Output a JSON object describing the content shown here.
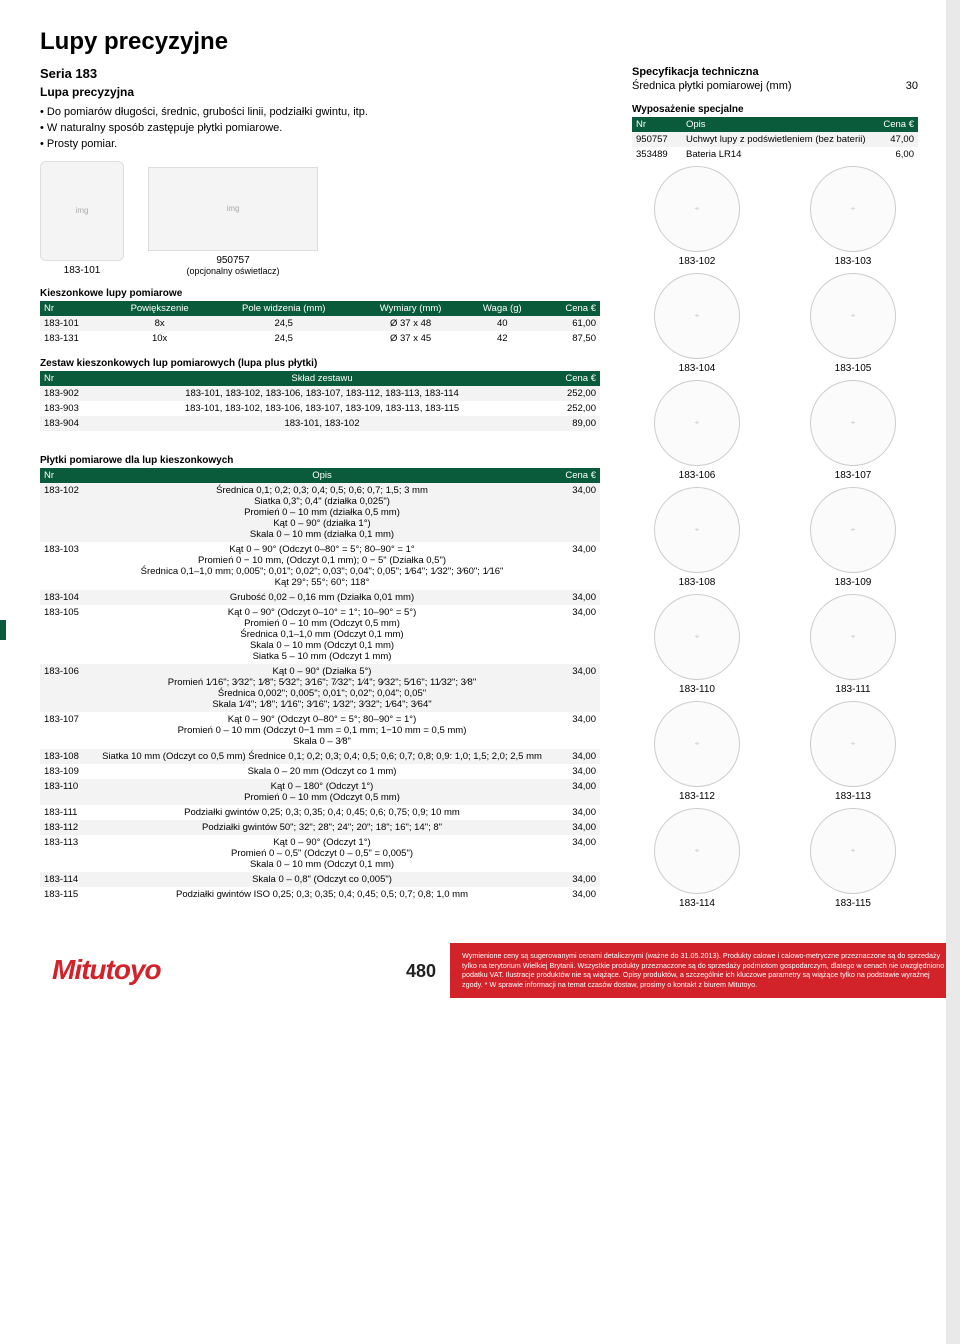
{
  "page_title": "Lupy precyzyjne",
  "series": "Seria 183",
  "subtitle": "Lupa precyzyjna",
  "bullets": [
    "Do pomiarów długości, średnic, grubości linii, podziałki gwintu, itp.",
    "W naturalny sposób zastępuje płytki pomiarowe.",
    "Prosty pomiar."
  ],
  "spec": {
    "title": "Specyfikacja techniczna",
    "diam_label": "Średnica płytki pomiarowej (mm)",
    "diam_value": "30"
  },
  "equip": {
    "title": "Wyposażenie specjalne",
    "cols": {
      "nr": "Nr",
      "opis": "Opis",
      "cena": "Cena €"
    },
    "rows": [
      {
        "nr": "950757",
        "opis": "Uchwyt lupy z podświetleniem (bez baterii)",
        "cena": "47,00"
      },
      {
        "nr": "353489",
        "opis": "Bateria LR14",
        "cena": "6,00"
      }
    ]
  },
  "img_labels": {
    "left": "183-101",
    "right_top": "950757",
    "right_bot": "(opcjonalny oświetlacz)"
  },
  "t1": {
    "title": "Kieszonkowe lupy pomiarowe",
    "cols": {
      "nr": "Nr",
      "pow": "Powiększenie",
      "pole": "Pole widzenia (mm)",
      "wym": "Wymiary (mm)",
      "waga": "Waga (g)",
      "cena": "Cena €"
    },
    "rows": [
      {
        "nr": "183-101",
        "pow": "8x",
        "pole": "24,5",
        "wym": "Ø 37 x 48",
        "waga": "40",
        "cena": "61,00"
      },
      {
        "nr": "183-131",
        "pow": "10x",
        "pole": "24,5",
        "wym": "Ø 37 x 45",
        "waga": "42",
        "cena": "87,50"
      }
    ]
  },
  "t2": {
    "title": "Zestaw kieszonkowych lup pomiarowych (lupa plus płytki)",
    "cols": {
      "nr": "Nr",
      "sklad": "Skład zestawu",
      "cena": "Cena €"
    },
    "rows": [
      {
        "nr": "183-902",
        "sklad": "183-101, 183-102, 183-106, 183-107, 183-112, 183-113, 183-114",
        "cena": "252,00"
      },
      {
        "nr": "183-903",
        "sklad": "183-101, 183-102, 183-106, 183-107, 183-109, 183-113, 183-115",
        "cena": "252,00"
      },
      {
        "nr": "183-904",
        "sklad": "183-101, 183-102",
        "cena": "89,00"
      }
    ]
  },
  "t3": {
    "title": "Płytki pomiarowe dla lup kieszonkowych",
    "cols": {
      "nr": "Nr",
      "opis": "Opis",
      "cena": "Cena €"
    },
    "rows": [
      {
        "nr": "183-102",
        "opis": "Średnica 0,1; 0,2; 0,3; 0,4; 0,5; 0,6; 0,7; 1,5; 3 mm\nSiatka 0,3\"; 0,4\" (działka 0,025\")\nPromień 0 – 10 mm (działka 0,5 mm)\nKąt 0 – 90° (działka 1°)\nSkala 0 – 10 mm (działka 0,1 mm)",
        "cena": "34,00"
      },
      {
        "nr": "183-103",
        "opis": "Kąt 0 – 90° (Odczyt 0–80° = 5°; 80–90° = 1°\nPromień 0 − 10 mm, (Odczyt 0,1 mm); 0 − 5\" (Działka 0,5\")\nŚrednica 0,1–1,0 mm; 0,005\"; 0,01\"; 0,02\"; 0,03\"; 0,04\"; 0,05\"; 1⁄64\"; 1⁄32\"; 3⁄60\"; 1⁄16\"\nKąt 29°; 55°; 60°; 118°",
        "cena": "34,00"
      },
      {
        "nr": "183-104",
        "opis": "Grubość 0,02 – 0,16 mm (Działka 0,01 mm)",
        "cena": "34,00"
      },
      {
        "nr": "183-105",
        "opis": "Kąt 0 – 90° (Odczyt 0–10° = 1°; 10–90° = 5°)\nPromień 0 – 10 mm (Odczyt 0,5 mm)\nŚrednica 0,1–1,0 mm (Odczyt 0,1 mm)\nSkala 0 – 10 mm (Odczyt 0,1 mm)\nSiatka 5 – 10 mm (Odczyt 1 mm)",
        "cena": "34,00"
      },
      {
        "nr": "183-106",
        "opis": "Kąt 0 – 90° (Działka 5°)\nPromień 1⁄16\"; 3⁄32\"; 1⁄8\"; 5⁄32\"; 3⁄16\"; 7⁄32\"; 1⁄4\"; 9⁄32\"; 5⁄16\"; 11⁄32\"; 3⁄8\"\nŚrednica 0,002\"; 0,005\"; 0,01\"; 0,02\"; 0,04\"; 0,05\"\nSkala 1⁄4\"; 1⁄8\"; 1⁄16\"; 3⁄16\"; 1⁄32\"; 3⁄32\"; 1⁄64\"; 3⁄64\"",
        "cena": "34,00"
      },
      {
        "nr": "183-107",
        "opis": "Kąt 0 – 90° (Odczyt 0–80° = 5°; 80–90° = 1°)\nPromień 0 – 10 mm (Odczyt 0−1 mm = 0,1 mm; 1−10 mm = 0,5 mm)\nSkala 0 – 3⁄8\"",
        "cena": "34,00"
      },
      {
        "nr": "183-108",
        "opis": "Siatka 10 mm (Odczyt co 0,5 mm) Średnice 0,1; 0,2; 0,3; 0,4; 0,5; 0,6; 0,7; 0,8; 0,9: 1,0; 1,5; 2,0; 2,5 mm",
        "cena": "34,00"
      },
      {
        "nr": "183-109",
        "opis": "Skala 0 – 20 mm (Odczyt co 1 mm)",
        "cena": "34,00"
      },
      {
        "nr": "183-110",
        "opis": "Kąt 0 – 180° (Odczyt 1°)\nPromień 0 – 10 mm (Odczyt 0,5 mm)",
        "cena": "34,00"
      },
      {
        "nr": "183-111",
        "opis": "Podziałki gwintów 0,25; 0,3; 0,35; 0,4; 0,45; 0,6; 0,75; 0,9; 10 mm",
        "cena": "34,00"
      },
      {
        "nr": "183-112",
        "opis": "Podziałki gwintów 50\"; 32\"; 28\"; 24\"; 20\"; 18\"; 16\"; 14\"; 8\"",
        "cena": "34,00"
      },
      {
        "nr": "183-113",
        "opis": "Kąt 0 – 90° (Odczyt 1°)\nPromień 0 – 0,5\" (Odczyt 0 – 0,5\" = 0,005\")\nSkala 0 – 10 mm (Odczyt 0,1 mm)",
        "cena": "34,00"
      },
      {
        "nr": "183-114",
        "opis": "Skala 0 – 0,8\" (Odczyt co 0,005\")",
        "cena": "34,00"
      },
      {
        "nr": "183-115",
        "opis": "Podziałki gwintów ISO 0,25; 0,3; 0,35; 0,4; 0,45; 0,5; 0,7; 0,8; 1,0 mm",
        "cena": "34,00"
      }
    ]
  },
  "reticles": [
    "183-102",
    "183-103",
    "183-104",
    "183-105",
    "183-106",
    "183-107",
    "183-108",
    "183-109",
    "183-110",
    "183-111",
    "183-112",
    "183-113",
    "183-114",
    "183-115"
  ],
  "footer": {
    "logo": "Mitutoyo",
    "page_no": "480",
    "legal": "Wymienione ceny są sugerowanymi cenami detalicznymi (ważne do 31.05.2013). Produkty calowe i calowo-metryczne przeznaczone są do sprzedaży tylko na terytorium Wielkiej Brytanii. Wszystkie produkty przeznaczone są do sprzedaży podmiotom gospodarczym, dlatego w cenach nie uwzględniono podatku VAT. Ilustracje produktów nie są wiążące. Opisy produktów, a szczególnie ich kluczowe parametry są wiążące tylko na podstawie wyraźnej zgody.   * W sprawie informacji na temat czasów dostaw, prosimy o kontakt z biurem Mitutoyo."
  },
  "colors": {
    "header": "#0a5a3c",
    "accent_red": "#d2232a",
    "row_alt": "#f3f3f3"
  }
}
